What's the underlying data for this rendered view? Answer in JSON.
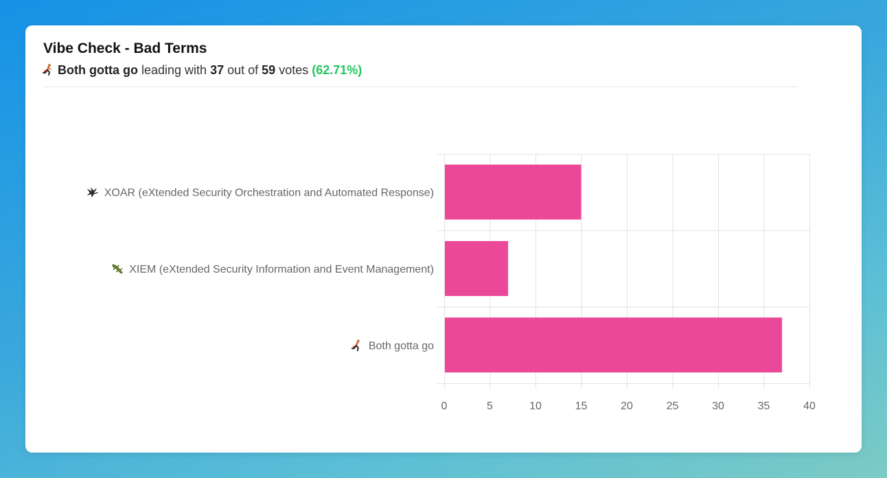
{
  "poll": {
    "title": "Vibe Check - Bad Terms",
    "leader_label": "Both gotta go",
    "leading_with_text": "leading with",
    "leader_votes": "37",
    "out_of_text": "out of",
    "total_votes": "59",
    "votes_text": "votes",
    "leader_percent": "(62.71%)"
  },
  "colors": {
    "bar": "#ec4899",
    "percent": "#22c55e",
    "grid": "#e3e3e3"
  },
  "chart_data": {
    "type": "bar",
    "orientation": "horizontal",
    "categories": [
      "XOAR (eXtended Security Orchestration and Automated Response)",
      "XIEM (eXtended Security Information and Event Management)",
      "Both gotta go"
    ],
    "category_icons": [
      "eagle-icon",
      "lizard-icon",
      "runner-icon"
    ],
    "values": [
      15,
      7,
      37
    ],
    "xlim": [
      0,
      40
    ],
    "xticks": [
      0,
      5,
      10,
      15,
      20,
      25,
      30,
      35,
      40
    ],
    "grid": true,
    "title": "",
    "xlabel": "",
    "ylabel": ""
  }
}
